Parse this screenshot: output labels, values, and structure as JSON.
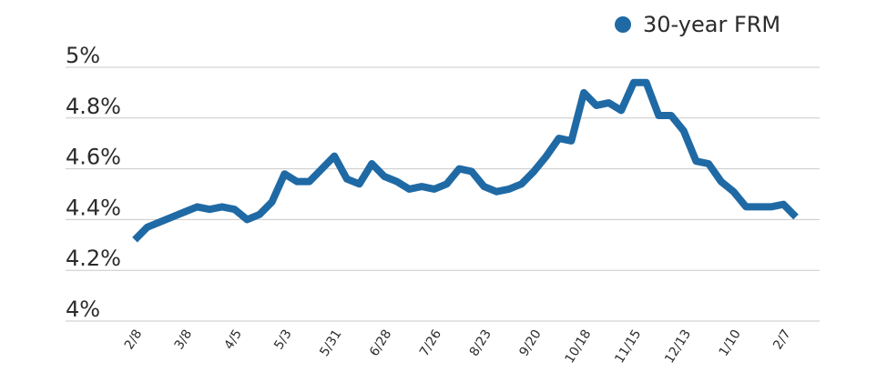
{
  "chart_data": {
    "type": "line",
    "title": "",
    "xlabel": "",
    "ylabel": "",
    "ylim": [
      4.0,
      5.0
    ],
    "yticks": [
      {
        "value": 5.0,
        "label": "5%"
      },
      {
        "value": 4.8,
        "label": "4.8%"
      },
      {
        "value": 4.6,
        "label": "4.6%"
      },
      {
        "value": 4.4,
        "label": "4.4%"
      },
      {
        "value": 4.2,
        "label": "4.2%"
      },
      {
        "value": 4.0,
        "label": "4%"
      }
    ],
    "xticks": [
      {
        "index": 0,
        "label": "2/8"
      },
      {
        "index": 4,
        "label": "3/8"
      },
      {
        "index": 8,
        "label": "4/5"
      },
      {
        "index": 12,
        "label": "5/3"
      },
      {
        "index": 16,
        "label": "5/31"
      },
      {
        "index": 20,
        "label": "6/28"
      },
      {
        "index": 24,
        "label": "7/26"
      },
      {
        "index": 28,
        "label": "8/23"
      },
      {
        "index": 32,
        "label": "9/20"
      },
      {
        "index": 36,
        "label": "10/18"
      },
      {
        "index": 40,
        "label": "11/15"
      },
      {
        "index": 44,
        "label": "12/13"
      },
      {
        "index": 48,
        "label": "1/10"
      },
      {
        "index": 52,
        "label": "2/7"
      }
    ],
    "grid": true,
    "legend_position": "top-right",
    "series": [
      {
        "name": "30-year FRM",
        "color": "#1f6aa5",
        "values": [
          4.32,
          4.37,
          4.39,
          4.41,
          4.43,
          4.45,
          4.44,
          4.45,
          4.44,
          4.4,
          4.42,
          4.47,
          4.58,
          4.55,
          4.55,
          4.6,
          4.65,
          4.56,
          4.54,
          4.62,
          4.57,
          4.55,
          4.52,
          4.53,
          4.52,
          4.54,
          4.6,
          4.59,
          4.53,
          4.51,
          4.52,
          4.54,
          4.59,
          4.65,
          4.72,
          4.71,
          4.9,
          4.85,
          4.86,
          4.83,
          4.94,
          4.94,
          4.81,
          4.81,
          4.75,
          4.63,
          4.62,
          4.55,
          4.51,
          4.45,
          4.45,
          4.45,
          4.46,
          4.41
        ]
      }
    ]
  }
}
